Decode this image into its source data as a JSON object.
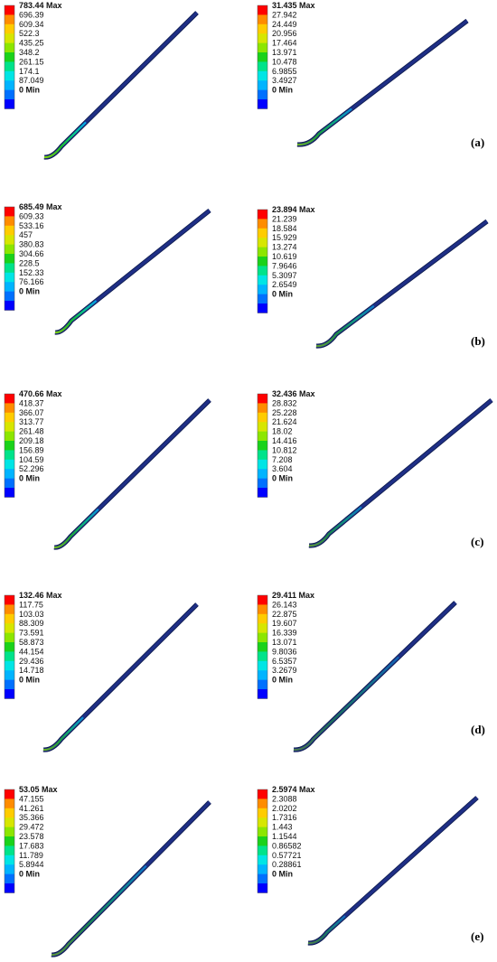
{
  "figure": {
    "colors": [
      "#0000ff",
      "#0070ff",
      "#00b4ff",
      "#00e5e5",
      "#00e38a",
      "#1ad21a",
      "#8ce600",
      "#d7e600",
      "#ffcc00",
      "#ff8c00",
      "#ff0000"
    ],
    "rod_color": "#1f2f86",
    "rows": [
      {
        "label": "(a)",
        "panels": [
          {
            "max": "783.44 Max",
            "ticks": [
              "696.39",
              "609.34",
              "522.3",
              "435.25",
              "348.2",
              "261.15",
              "174.1",
              "87.049"
            ],
            "min": "0 Min"
          },
          {
            "max": "31.435 Max",
            "ticks": [
              "27.942",
              "24.449",
              "20.956",
              "17.464",
              "13.971",
              "10.478",
              "6.9855",
              "3.4927"
            ],
            "min": "0 Min"
          }
        ]
      },
      {
        "label": "(b)",
        "panels": [
          {
            "max": "685.49 Max",
            "ticks": [
              "609.33",
              "533.16",
              "457",
              "380.83",
              "304.66",
              "228.5",
              "152.33",
              "76.166"
            ],
            "min": "0 Min"
          },
          {
            "max": "23.894 Max",
            "ticks": [
              "21.239",
              "18.584",
              "15.929",
              "13.274",
              "10.619",
              "7.9646",
              "5.3097",
              "2.6549"
            ],
            "min": "0 Min"
          }
        ]
      },
      {
        "label": "(c)",
        "panels": [
          {
            "max": "470.66 Max",
            "ticks": [
              "418.37",
              "366.07",
              "313.77",
              "261.48",
              "209.18",
              "156.89",
              "104.59",
              "52.296"
            ],
            "min": "0 Min"
          },
          {
            "max": "32.436 Max",
            "ticks": [
              "28.832",
              "25.228",
              "21.624",
              "18.02",
              "14.416",
              "10.812",
              "7.208",
              "3.604"
            ],
            "min": "0 Min"
          }
        ]
      },
      {
        "label": "(d)",
        "panels": [
          {
            "max": "132.46 Max",
            "ticks": [
              "117.75",
              "103.03",
              "88.309",
              "73.591",
              "58.873",
              "44.154",
              "29.436",
              "14.718"
            ],
            "min": "0 Min"
          },
          {
            "max": "29.411 Max",
            "ticks": [
              "26.143",
              "22.875",
              "19.607",
              "16.339",
              "13.071",
              "9.8036",
              "6.5357",
              "3.2679"
            ],
            "min": "0 Min"
          }
        ]
      },
      {
        "label": "(e)",
        "panels": [
          {
            "max": "53.05 Max",
            "ticks": [
              "47.155",
              "41.261",
              "35.366",
              "29.472",
              "23.578",
              "17.683",
              "11.789",
              "5.8944"
            ],
            "min": "0 Min"
          },
          {
            "max": "2.5974 Max",
            "ticks": [
              "2.3088",
              "2.0202",
              "1.7316",
              "1.443",
              "1.1544",
              "0.86582",
              "0.57721",
              "0.28861"
            ],
            "min": "0 Min"
          }
        ]
      }
    ]
  }
}
